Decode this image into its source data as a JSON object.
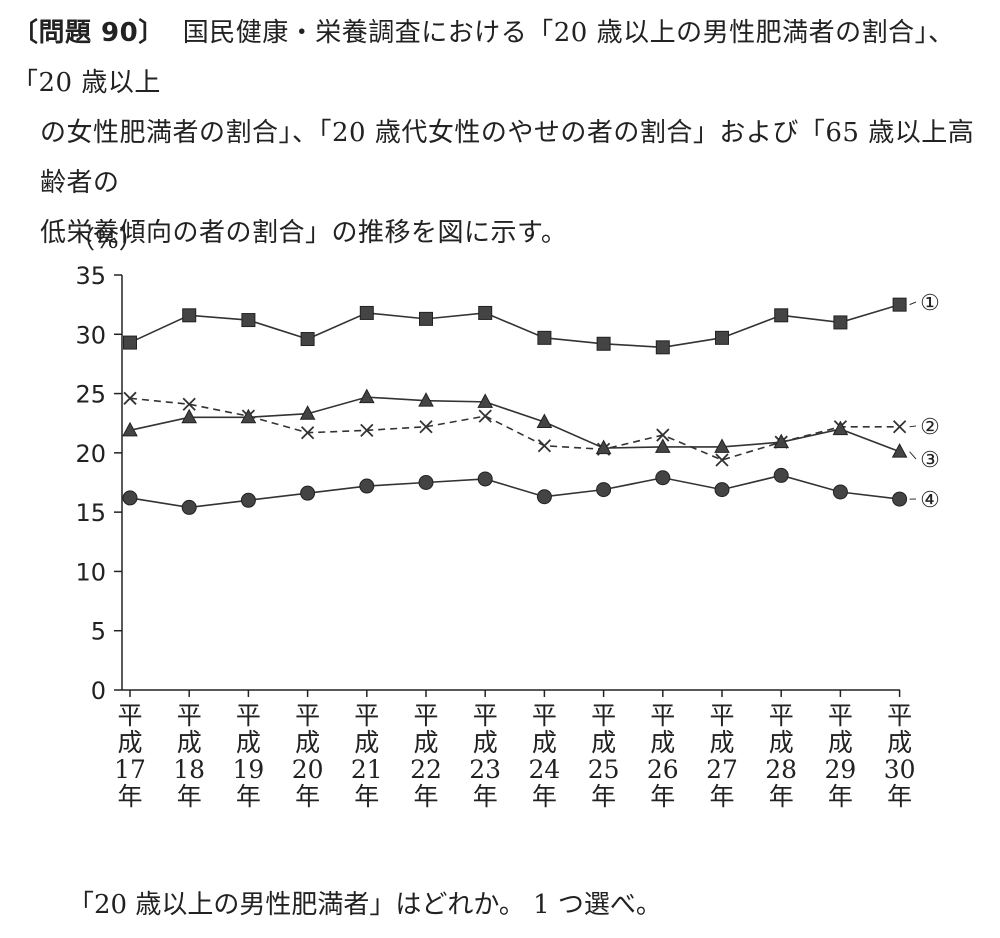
{
  "question": {
    "number": "〔問題 90〕",
    "line1": "国民健康・栄養調査における「20 歳以上の男性肥満者の割合」、「20 歳以上",
    "line2": "の女性肥満者の割合」、「20 歳代女性のやせの者の割合」および「65 歳以上高齢者の",
    "line3": "低栄養傾向の者の割合」の推移を図に示す。"
  },
  "answer_prompt": "「20 歳以上の男性肥満者」はどれか。 1 つ選べ。",
  "chart_data": {
    "type": "line",
    "ylabel": "（%）",
    "ylim": [
      0,
      35
    ],
    "yticks": [
      0,
      5,
      10,
      15,
      20,
      25,
      30,
      35
    ],
    "categories": [
      "平成17年",
      "平成18年",
      "平成19年",
      "平成20年",
      "平成21年",
      "平成22年",
      "平成23年",
      "平成24年",
      "平成25年",
      "平成26年",
      "平成27年",
      "平成28年",
      "平成29年",
      "平成30年"
    ],
    "category_lines": [
      [
        "平",
        "成",
        "17",
        "年"
      ],
      [
        "平",
        "成",
        "18",
        "年"
      ],
      [
        "平",
        "成",
        "19",
        "年"
      ],
      [
        "平",
        "成",
        "20",
        "年"
      ],
      [
        "平",
        "成",
        "21",
        "年"
      ],
      [
        "平",
        "成",
        "22",
        "年"
      ],
      [
        "平",
        "成",
        "23",
        "年"
      ],
      [
        "平",
        "成",
        "24",
        "年"
      ],
      [
        "平",
        "成",
        "25",
        "年"
      ],
      [
        "平",
        "成",
        "26",
        "年"
      ],
      [
        "平",
        "成",
        "27",
        "年"
      ],
      [
        "平",
        "成",
        "28",
        "年"
      ],
      [
        "平",
        "成",
        "29",
        "年"
      ],
      [
        "平",
        "成",
        "30",
        "年"
      ]
    ],
    "grid": false,
    "series": [
      {
        "name": "①",
        "marker": "square",
        "dash": false,
        "values": [
          29.3,
          31.6,
          31.2,
          29.6,
          31.8,
          31.3,
          31.8,
          29.7,
          29.2,
          28.9,
          29.7,
          31.6,
          31.0,
          32.5
        ]
      },
      {
        "name": "②",
        "marker": "cross",
        "dash": true,
        "values": [
          24.6,
          24.1,
          23.1,
          21.7,
          21.9,
          22.2,
          23.1,
          20.6,
          20.3,
          21.5,
          19.4,
          20.9,
          22.2,
          22.2
        ]
      },
      {
        "name": "③",
        "marker": "triangle",
        "dash": false,
        "values": [
          21.9,
          23.0,
          23.0,
          23.3,
          24.7,
          24.4,
          24.3,
          22.6,
          20.4,
          20.5,
          20.5,
          20.9,
          22.0,
          20.1
        ]
      },
      {
        "name": "④",
        "marker": "circle",
        "dash": false,
        "values": [
          16.2,
          15.4,
          16.0,
          16.6,
          17.2,
          17.5,
          17.8,
          16.3,
          16.9,
          17.9,
          16.9,
          18.1,
          16.7,
          16.1
        ]
      }
    ]
  }
}
